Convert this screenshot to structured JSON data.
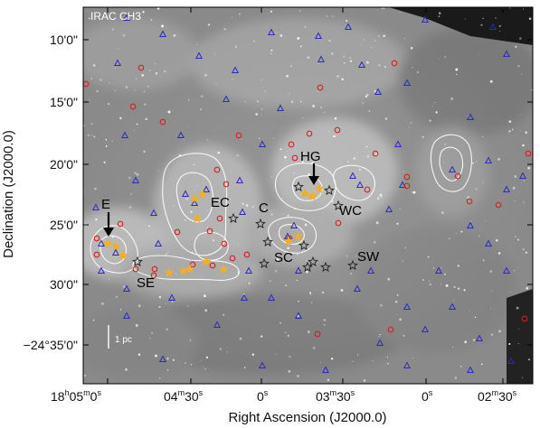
{
  "panel_label": "IRAC CH3",
  "x_axis_title": "Right Ascension (J2000.0)",
  "y_axis_title": "Declination (J2000.0)",
  "x_ticks": [
    {
      "h": "18",
      "hs": "h",
      "m": "05",
      "ms": "m",
      "s": "0",
      "ss": "s"
    },
    {
      "m": "04",
      "ms": "m",
      "s": "30",
      "ss": "s"
    },
    {
      "s": "0",
      "ss": "s"
    },
    {
      "m": "03",
      "ms": "m",
      "s": "30",
      "ss": "s"
    },
    {
      "s": "0",
      "ss": "s"
    },
    {
      "m": "02",
      "ms": "m",
      "s": "30",
      "ss": "s"
    }
  ],
  "y_ticks": [
    {
      "text": "10'0\""
    },
    {
      "text": "15'0\""
    },
    {
      "text": "20'0\""
    },
    {
      "text": "25'0\""
    },
    {
      "text": "30'0\""
    },
    {
      "text": "−24°35'0\""
    }
  ],
  "region_labels": [
    {
      "text": "E"
    },
    {
      "text": "SE"
    },
    {
      "text": "EC"
    },
    {
      "text": "C"
    },
    {
      "text": "HG"
    },
    {
      "text": "WC"
    },
    {
      "text": "SC"
    },
    {
      "text": "SW"
    }
  ],
  "scale_bar_label": "1 pc",
  "colors": {
    "sky_background": "#8c8c8c",
    "contour": "#ffffff",
    "triangle_marker": "#2b2bbf",
    "circle_marker": "#d22020",
    "star_marker": "#f0b020",
    "open_star_marker": "#222222",
    "arrow": "#000000"
  }
}
